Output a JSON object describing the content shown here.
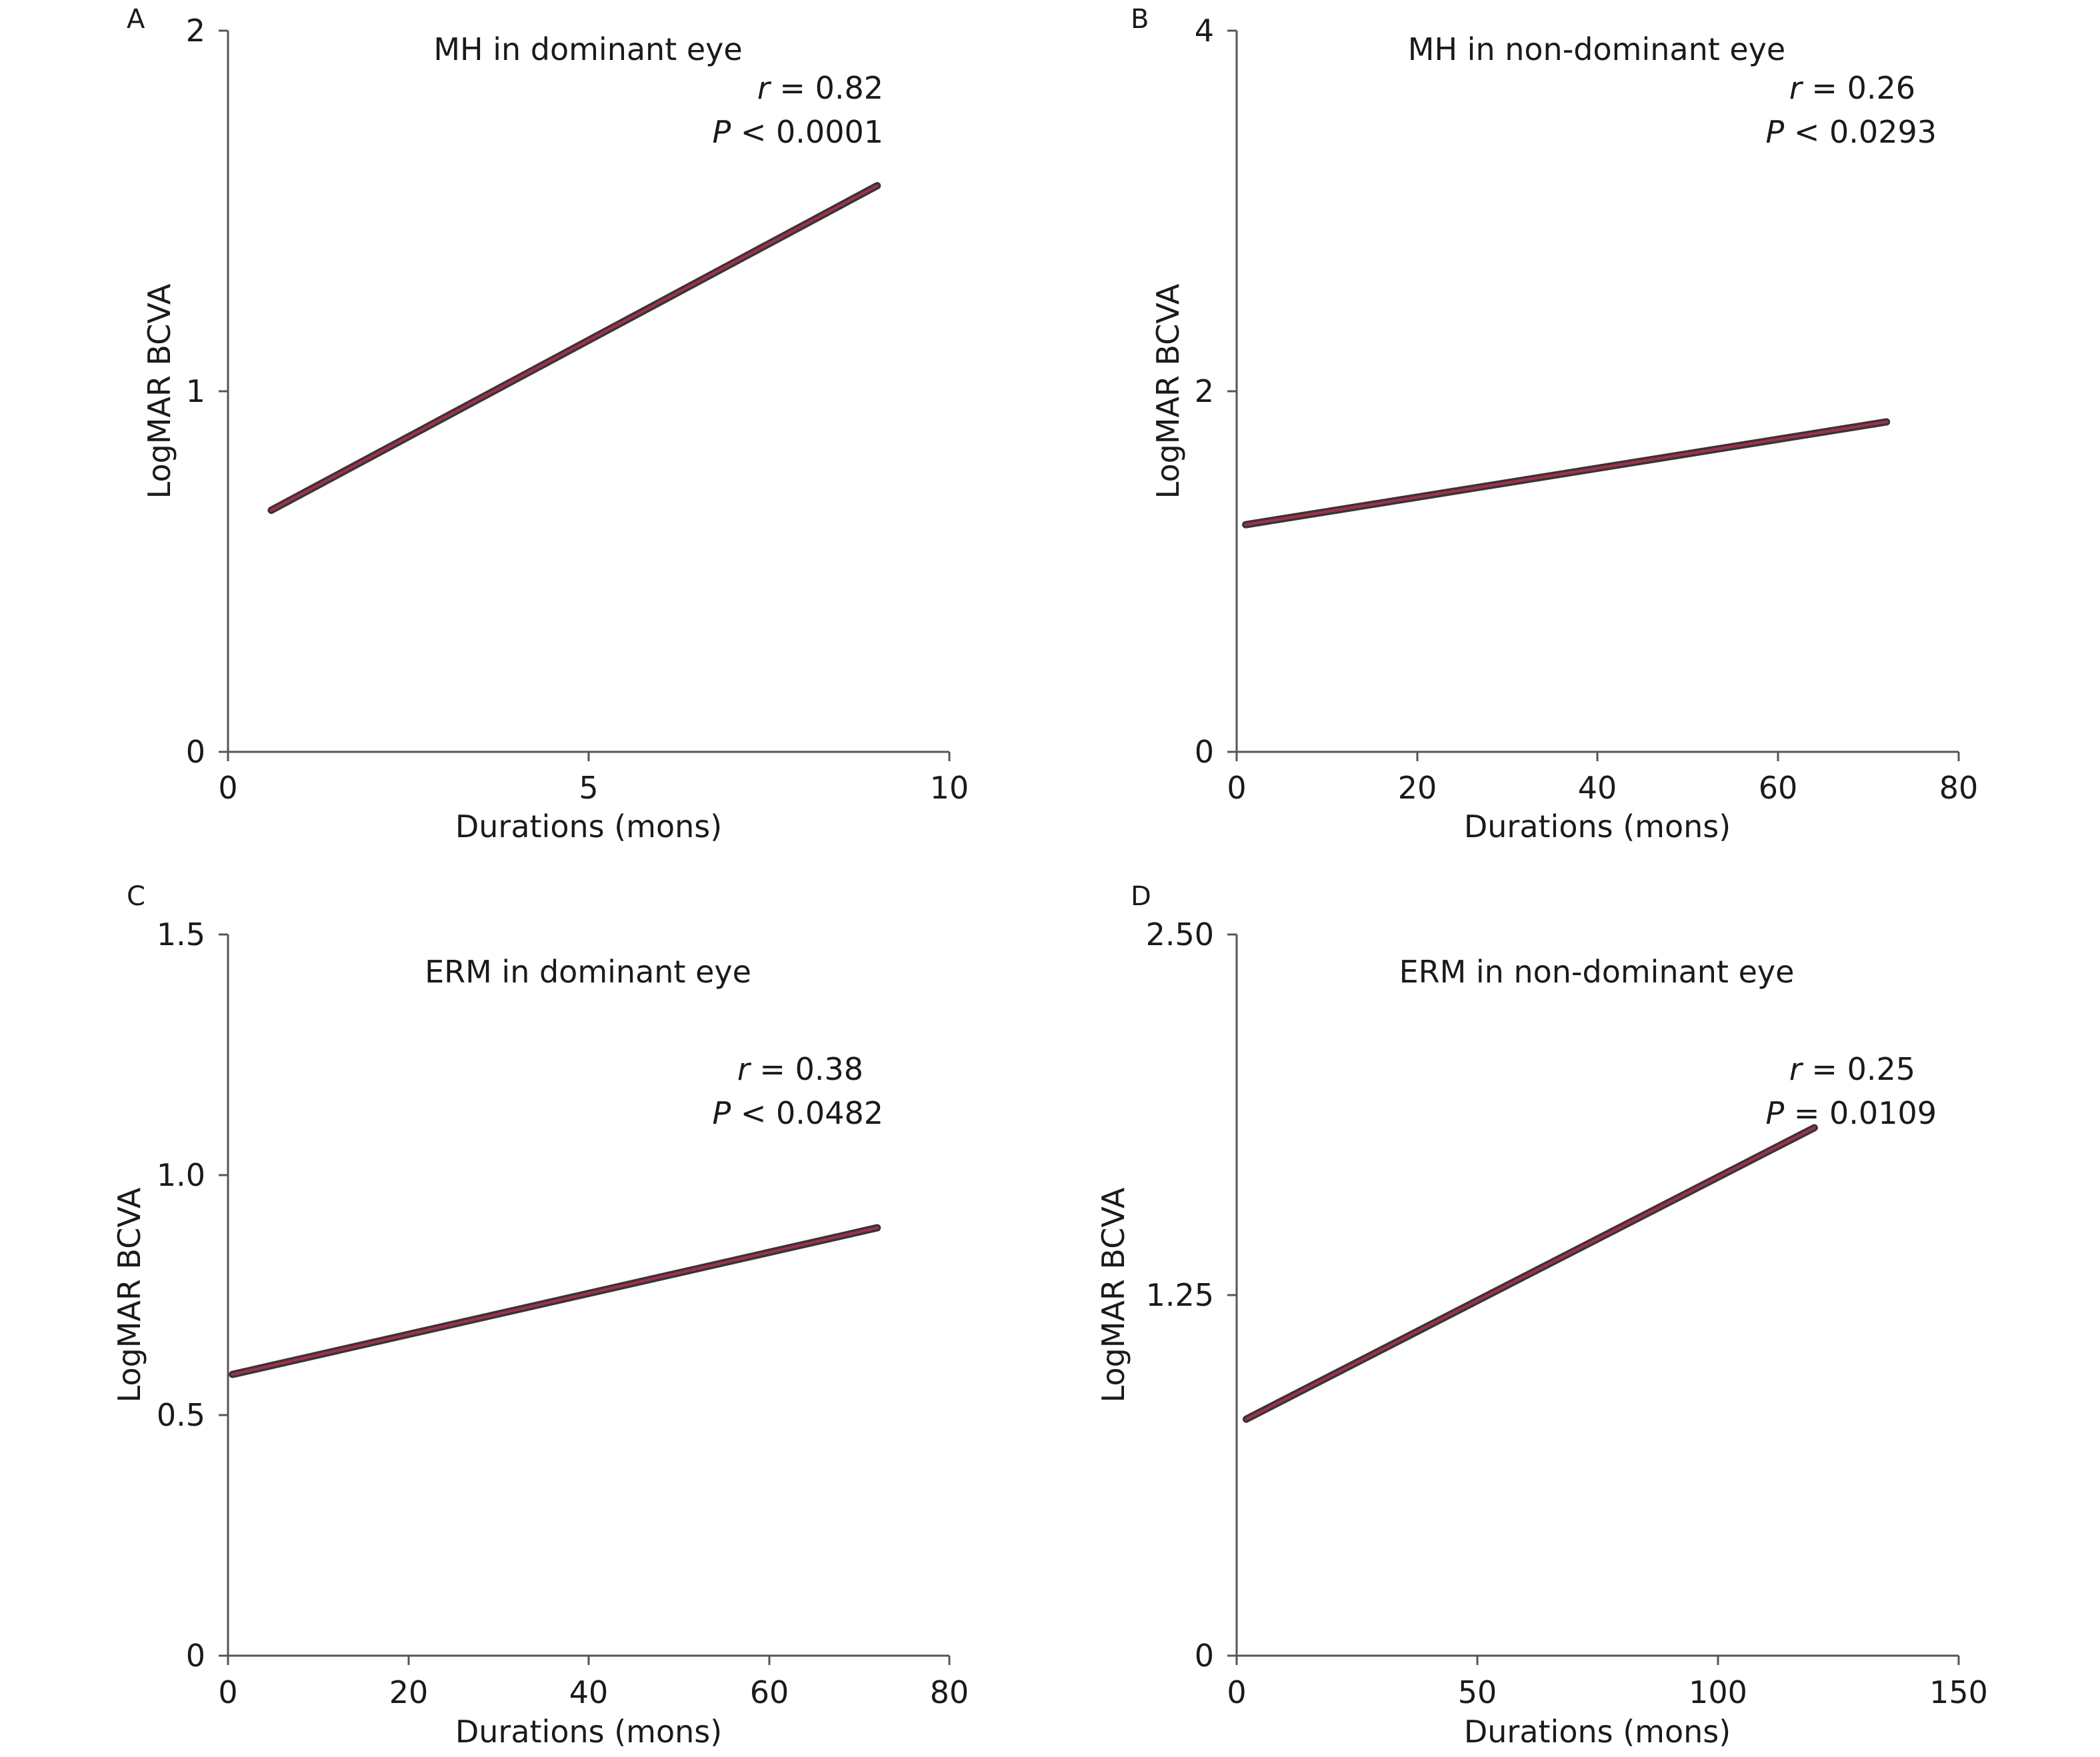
{
  "chart_data": [
    {
      "type": "line",
      "panel": "A",
      "title": "MH in dominant eye",
      "xlabel": "Durations (mons)",
      "ylabel": "LogMAR BCVA",
      "xlim": [
        0,
        10
      ],
      "ylim": [
        0,
        2
      ],
      "xticks": [
        "0",
        "5",
        "10"
      ],
      "yticks": [
        "0",
        "1",
        "2"
      ],
      "grid": false,
      "stats": {
        "r_symbol": "r",
        "r_text": " = 0.82",
        "p_symbol": "P",
        "p_text": " < 0.0001"
      },
      "series": [
        {
          "x": [
            0.6,
            9.0
          ],
          "y": [
            0.67,
            1.57
          ]
        }
      ]
    },
    {
      "type": "line",
      "panel": "B",
      "title": "MH in non-dominant eye",
      "xlabel": "Durations (mons)",
      "ylabel": "LogMAR BCVA",
      "xlim": [
        0,
        80
      ],
      "ylim": [
        0,
        4
      ],
      "xticks": [
        "0",
        "20",
        "40",
        "60",
        "80"
      ],
      "yticks": [
        "0",
        "2",
        "4"
      ],
      "grid": false,
      "stats": {
        "r_symbol": "r",
        "r_text": " = 0.26",
        "p_symbol": "P",
        "p_text": " < 0.0293"
      },
      "series": [
        {
          "x": [
            1,
            72
          ],
          "y": [
            1.26,
            1.83
          ]
        }
      ]
    },
    {
      "type": "line",
      "panel": "C",
      "title": "ERM in dominant eye",
      "xlabel": "Durations (mons)",
      "ylabel": "LogMAR BCVA",
      "xlim": [
        0,
        80
      ],
      "ylim": [
        0,
        1.5
      ],
      "xticks": [
        "0",
        "20",
        "40",
        "60",
        "80"
      ],
      "yticks": [
        "0",
        "0.5",
        "1.0",
        "1.5"
      ],
      "grid": false,
      "stats": {
        "r_symbol": "r",
        "r_text": " = 0.38",
        "p_symbol": "P",
        "p_text": " < 0.0482"
      },
      "series": [
        {
          "x": [
            0.5,
            72
          ],
          "y": [
            0.585,
            0.89
          ]
        }
      ]
    },
    {
      "type": "line",
      "panel": "D",
      "title": "ERM in non-dominant eye",
      "xlabel": "Durations (mons)",
      "ylabel": "LogMAR BCVA",
      "xlim": [
        0,
        150
      ],
      "ylim": [
        0,
        2.5
      ],
      "xticks": [
        "0",
        "50",
        "100",
        "150"
      ],
      "yticks": [
        "0",
        "1.25",
        "2.50"
      ],
      "grid": false,
      "stats": {
        "r_symbol": "r",
        "r_text": " = 0.25",
        "p_symbol": "P",
        "p_text": " = 0.0109"
      },
      "series": [
        {
          "x": [
            2,
            120
          ],
          "y": [
            0.82,
            1.83
          ]
        }
      ]
    }
  ],
  "colors": {
    "fit_line_dark": "#3a3436",
    "fit_line_accent": "#b5304f",
    "axis": "#555555",
    "text": "#1a1a1a"
  }
}
